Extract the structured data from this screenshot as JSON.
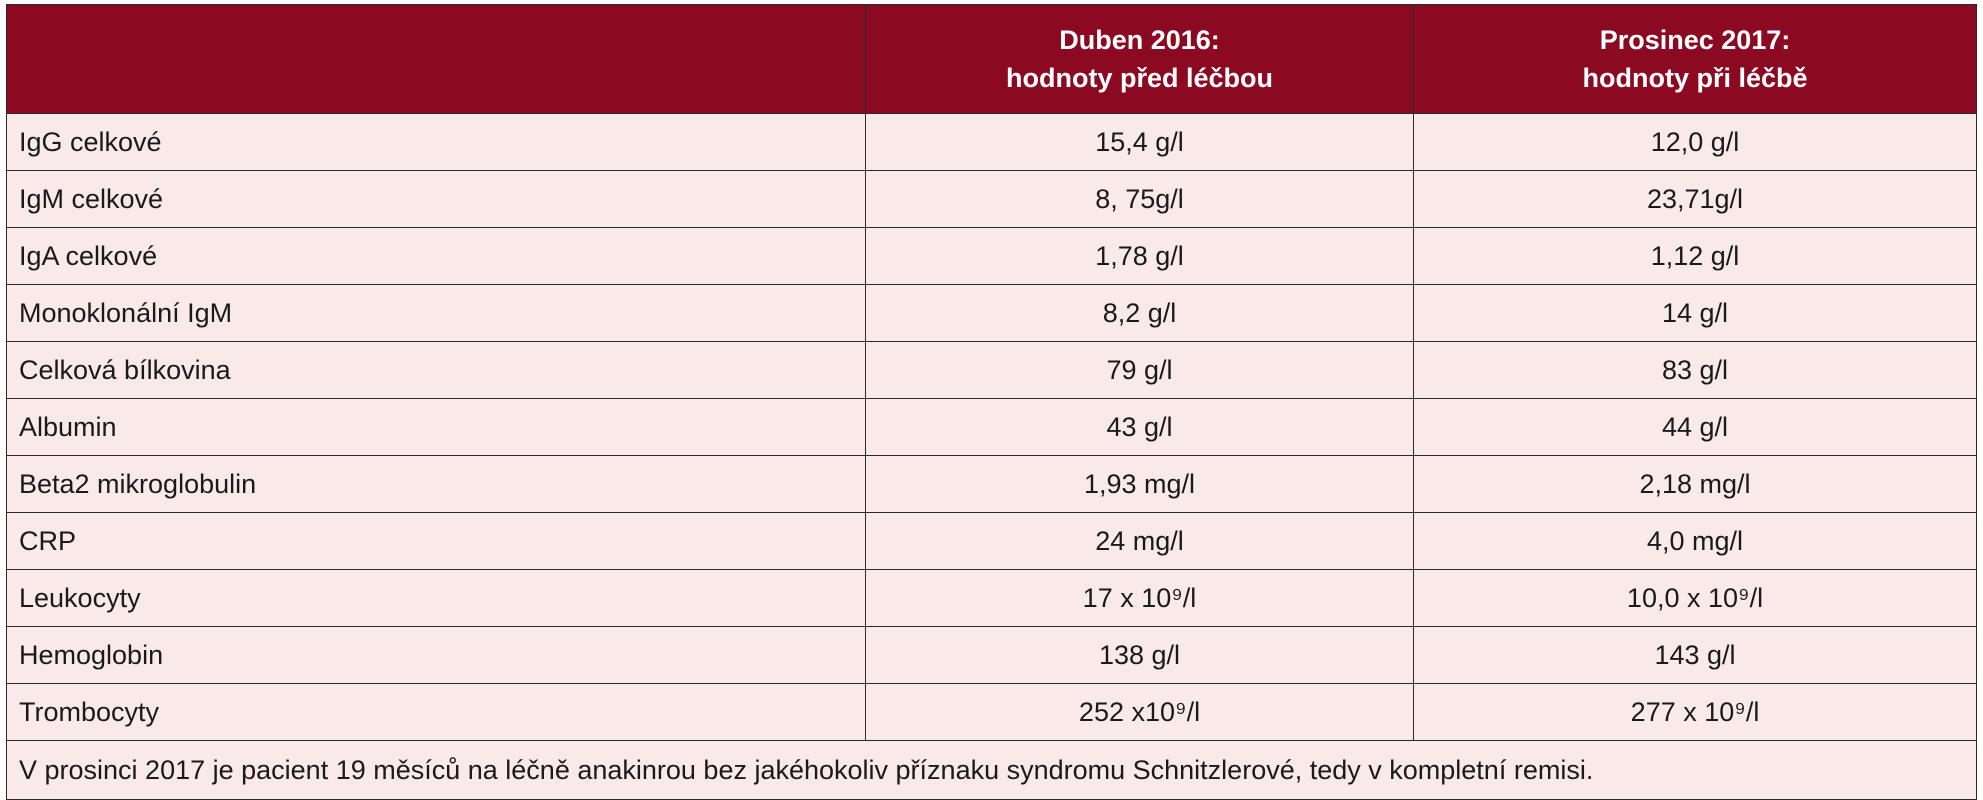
{
  "header": {
    "col1": "",
    "col2_line1": "Duben 2016:",
    "col2_line2": "hodnoty před léčbou",
    "col3_line1": "Prosinec 2017:",
    "col3_line2": "hodnoty při léčbě"
  },
  "rows": [
    {
      "name": "IgG celkové",
      "before": "15,4 g/l",
      "after": "12,0 g/l"
    },
    {
      "name": "IgM celkové",
      "before": "8, 75g/l",
      "after": "23,71g/l"
    },
    {
      "name": "IgA celkové",
      "before": "1,78 g/l",
      "after": "1,12 g/l"
    },
    {
      "name": "Monoklonální IgM",
      "before": "8,2 g/l",
      "after": "14 g/l"
    },
    {
      "name": "Celková bílkovina",
      "before": "79 g/l",
      "after": "83 g/l"
    },
    {
      "name": "Albumin",
      "before": "43 g/l",
      "after": "44 g/l"
    },
    {
      "name": "Beta2 mikroglobulin",
      "before": "1,93 mg/l",
      "after": "2,18 mg/l"
    },
    {
      "name": "CRP",
      "before": "24 mg/l",
      "after": "4,0 mg/l"
    },
    {
      "name": "Leukocyty",
      "before": "17 x 10⁹/l",
      "after": "10,0 x 10⁹/l"
    },
    {
      "name": "Hemoglobin",
      "before": "138 g/l",
      "after": "143 g/l"
    },
    {
      "name": "Trombocyty",
      "before": "252 x10⁹/l",
      "after": "277 x 10⁹/l"
    }
  ],
  "note": "V prosinci 2017 je pacient 19 měsíců na léčně anakinrou bez jakéhokoliv příznaku syndromu Schnitzlerové, tedy v kompletní remisi.",
  "colors": {
    "header_bg": "#8c0a21",
    "cell_bg": "#f9e9e9",
    "border": "#2a2a2a"
  }
}
